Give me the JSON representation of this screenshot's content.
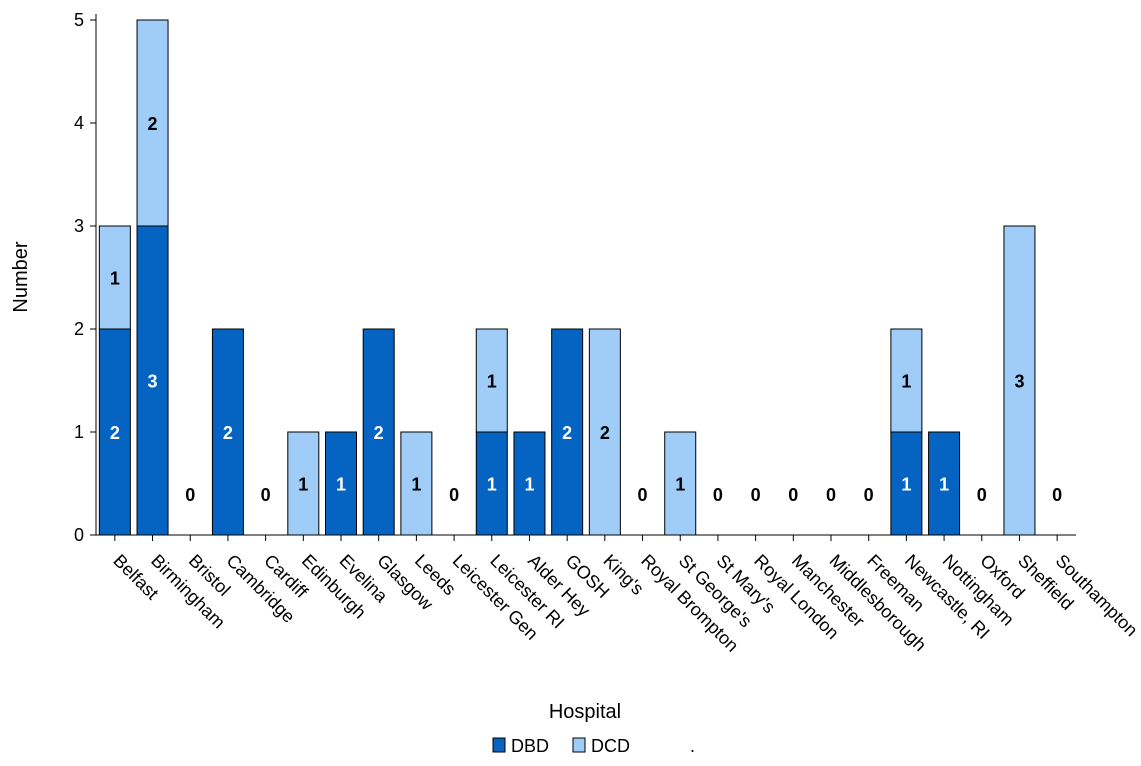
{
  "chart_data": {
    "type": "bar",
    "stacked": true,
    "title": "",
    "xlabel": "Hospital",
    "ylabel": "Number",
    "ylim": [
      0,
      5
    ],
    "yticks": [
      "0",
      "1",
      "2",
      "3",
      "4",
      "5"
    ],
    "grid": false,
    "legend_position": "bottom",
    "categories": [
      "Belfast",
      "Birmingham",
      "Bristol",
      "Cambridge",
      "Cardiff",
      "Edinburgh",
      "Evelina",
      "Glasgow",
      "Leeds",
      "Leicester Gen",
      "Leicester RI",
      "Alder Hey",
      "GOSH",
      "King's",
      "Royal Brompton",
      "St George's",
      "St Mary's",
      "Royal London",
      "Manchester",
      "Middlesborough",
      "Freeman",
      "Newcastle, RI",
      "Nottingham",
      "Oxford",
      "Sheffield",
      "Southampton"
    ],
    "series": [
      {
        "name": "DBD",
        "color": "#0563c1",
        "label_color": "#ffffff",
        "values": [
          2,
          3,
          0,
          2,
          0,
          0,
          1,
          2,
          0,
          0,
          1,
          1,
          2,
          0,
          0,
          0,
          0,
          0,
          0,
          0,
          0,
          1,
          1,
          0,
          0,
          0
        ]
      },
      {
        "name": "DCD",
        "color": "#a0cdf8",
        "label_color": "#000000",
        "values": [
          1,
          2,
          0,
          0,
          0,
          1,
          0,
          0,
          1,
          0,
          1,
          0,
          0,
          2,
          0,
          1,
          0,
          0,
          0,
          0,
          0,
          1,
          0,
          0,
          3,
          0
        ]
      }
    ],
    "zero_label": "0",
    "legend_suffix": "."
  }
}
